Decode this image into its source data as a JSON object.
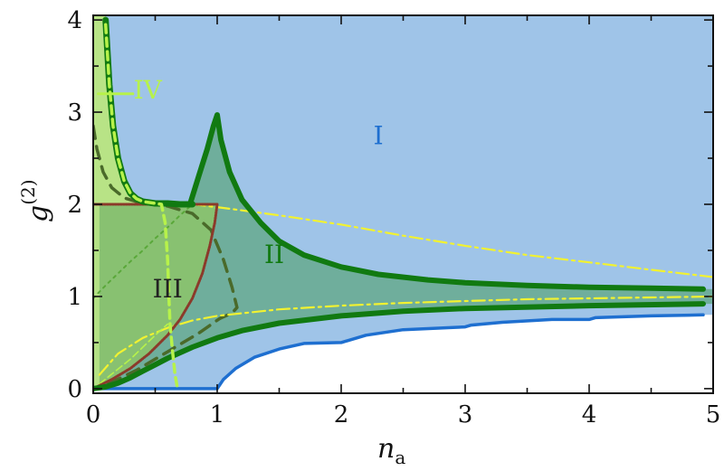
{
  "chart_data": {
    "type": "area",
    "xlabel": "n",
    "xlabel_sub": "a",
    "ylabel": "g",
    "ylabel_sup": "(2)",
    "xlim": [
      0,
      5
    ],
    "ylim": [
      -0.05,
      4.05
    ],
    "xticks": [
      0,
      1,
      2,
      3,
      4,
      5
    ],
    "yticks": [
      0,
      1,
      2,
      3,
      4
    ],
    "grid": false,
    "colors": {
      "region_I": "#9fc4e8",
      "region_II": "#6fae9c",
      "region_III": "#8dc46a",
      "region_IV": "#b8e386",
      "dark_green": "#117a11",
      "blue": "#1e6fd0",
      "yellow": "#f2f230",
      "light_green": "#b7f24a",
      "olive_dashed": "#4a6a2a",
      "maroon": "#8b3a2a",
      "green_dotted": "#5aa83a"
    },
    "region_labels": [
      {
        "name": "I",
        "text": "I",
        "x": 2.3,
        "y": 2.65,
        "color": "#1e6fd0"
      },
      {
        "name": "II",
        "text": "II",
        "x": 1.46,
        "y": 1.36,
        "color": "#117a11"
      },
      {
        "name": "III",
        "text": "III",
        "x": 0.6,
        "y": 0.99,
        "color": "#222222"
      },
      {
        "name": "IV",
        "text": "IV",
        "x": 0.44,
        "y": 3.15,
        "color": "#b7f24a"
      }
    ],
    "series": [
      {
        "key": "green_upper_left",
        "x": [
          0.1,
          0.13,
          0.16,
          0.2,
          0.25,
          0.3,
          0.35,
          0.4,
          0.5,
          0.6,
          0.7,
          0.8
        ],
        "y": [
          4.0,
          3.3,
          2.85,
          2.5,
          2.25,
          2.12,
          2.06,
          2.03,
          2.01,
          2.01,
          2.0,
          2.0
        ]
      },
      {
        "key": "green_peak",
        "x": [
          0.78,
          0.85,
          0.92,
          0.97,
          1.0,
          1.03,
          1.1,
          1.2,
          1.35,
          1.5,
          1.7,
          2.0,
          2.3,
          2.7,
          3.0,
          3.5,
          4.0,
          4.5,
          4.92
        ],
        "y": [
          2.0,
          2.3,
          2.6,
          2.85,
          2.97,
          2.7,
          2.35,
          2.05,
          1.8,
          1.6,
          1.45,
          1.32,
          1.24,
          1.18,
          1.15,
          1.12,
          1.1,
          1.09,
          1.08
        ]
      },
      {
        "key": "green_lower",
        "x": [
          0.0,
          0.1,
          0.2,
          0.3,
          0.4,
          0.5,
          0.6,
          0.7,
          0.8,
          1.0,
          1.2,
          1.5,
          2.0,
          2.5,
          3.0,
          4.0,
          4.92
        ],
        "y": [
          0.0,
          0.02,
          0.06,
          0.12,
          0.19,
          0.26,
          0.33,
          0.39,
          0.45,
          0.55,
          0.63,
          0.71,
          0.79,
          0.84,
          0.87,
          0.9,
          0.92
        ]
      },
      {
        "key": "blue",
        "x": [
          0.0,
          1.0,
          1.05,
          1.15,
          1.3,
          1.5,
          1.7,
          2.0,
          2.05,
          2.2,
          2.5,
          3.0,
          3.05,
          3.3,
          3.7,
          4.0,
          4.05,
          4.5,
          4.92
        ],
        "y": [
          0.0,
          0.0,
          0.1,
          0.22,
          0.34,
          0.43,
          0.49,
          0.5,
          0.52,
          0.58,
          0.64,
          0.67,
          0.69,
          0.72,
          0.75,
          0.75,
          0.77,
          0.79,
          0.8
        ]
      },
      {
        "key": "yellow_upper",
        "x": [
          0.8,
          1.0,
          1.5,
          2.0,
          2.5,
          3.0,
          3.5,
          4.0,
          4.5,
          5.0
        ],
        "y": [
          2.0,
          1.97,
          1.88,
          1.78,
          1.66,
          1.55,
          1.45,
          1.37,
          1.29,
          1.21
        ]
      },
      {
        "key": "yellow_lower",
        "x": [
          0.05,
          0.2,
          0.4,
          0.6,
          0.8,
          1.0,
          1.5,
          2.0,
          2.5,
          3.0,
          3.5,
          4.0,
          4.5,
          5.0
        ],
        "y": [
          0.15,
          0.38,
          0.55,
          0.66,
          0.74,
          0.79,
          0.86,
          0.9,
          0.93,
          0.95,
          0.97,
          0.98,
          0.99,
          1.0
        ]
      },
      {
        "key": "light_green_dashed",
        "x": [
          0.1,
          0.13,
          0.16,
          0.2,
          0.25,
          0.3,
          0.35,
          0.4,
          0.5,
          0.55,
          0.58,
          0.6,
          0.61,
          0.62,
          0.64,
          0.66,
          0.68
        ],
        "y": [
          3.95,
          3.3,
          2.85,
          2.5,
          2.25,
          2.12,
          2.06,
          2.03,
          2.01,
          2.0,
          1.8,
          1.4,
          1.0,
          0.7,
          0.4,
          0.15,
          0.0
        ]
      },
      {
        "key": "olive_dashed",
        "x": [
          0.0,
          0.03,
          0.08,
          0.15,
          0.25,
          0.4,
          0.6,
          0.8,
          0.95,
          1.05,
          1.12,
          1.16,
          1.12,
          1.02,
          0.85,
          0.6,
          0.35,
          0.15,
          0.05,
          0.0
        ],
        "y": [
          2.85,
          2.6,
          2.35,
          2.18,
          2.07,
          2.01,
          1.98,
          1.9,
          1.72,
          1.4,
          1.1,
          0.88,
          0.82,
          0.76,
          0.6,
          0.4,
          0.2,
          0.07,
          0.02,
          0.0
        ]
      },
      {
        "key": "green_dotted",
        "x": [
          0.0,
          0.1,
          0.2,
          0.3,
          0.4,
          0.5,
          0.6,
          0.7,
          0.8
        ],
        "y": [
          0.98,
          1.12,
          1.25,
          1.38,
          1.5,
          1.63,
          1.75,
          1.88,
          2.0
        ]
      },
      {
        "key": "maroon_horizontal",
        "x": [
          0.0,
          1.0
        ],
        "y": [
          2.0,
          2.0
        ]
      },
      {
        "key": "maroon_curve",
        "x": [
          0.0,
          0.15,
          0.3,
          0.45,
          0.6,
          0.7,
          0.8,
          0.88,
          0.94,
          0.98,
          1.0
        ],
        "y": [
          0.0,
          0.1,
          0.22,
          0.38,
          0.58,
          0.75,
          0.98,
          1.25,
          1.55,
          1.8,
          2.0
        ]
      },
      {
        "key": "light_green_solid",
        "x": [
          0.05,
          0.3,
          0.5,
          0.6
        ],
        "y": [
          0.05,
          0.32,
          0.58,
          0.7
        ]
      },
      {
        "key": "iv_marker",
        "x": [
          0.04,
          0.32
        ],
        "y": [
          3.2,
          3.2
        ]
      }
    ]
  }
}
